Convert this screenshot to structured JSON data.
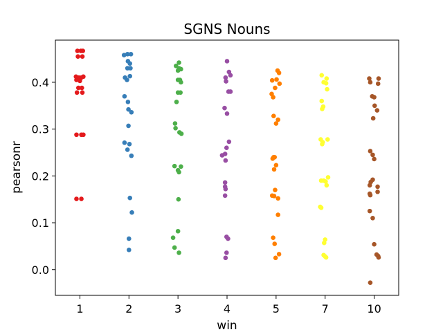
{
  "chart_data": {
    "type": "scatter",
    "title": "SGNS Nouns",
    "xlabel": "win",
    "ylabel": "pearsonr",
    "categories": [
      "1",
      "2",
      "3",
      "4",
      "5",
      "7",
      "10"
    ],
    "ylim": [
      -0.055,
      0.49
    ],
    "yticks": [
      0.0,
      0.1,
      0.2,
      0.3,
      0.4
    ],
    "ytick_labels": [
      "0.0",
      "0.1",
      "0.2",
      "0.3",
      "0.4"
    ],
    "grid": false,
    "legend": "none",
    "colors": [
      "#e41a1c",
      "#377eb8",
      "#4daf4a",
      "#984ea3",
      "#ff7f00",
      "#ffff33",
      "#a65628"
    ],
    "series": [
      {
        "category": "1",
        "color": "#e41a1c",
        "points": [
          {
            "jitter": -0.05,
            "y": 0.467
          },
          {
            "jitter": 0.02,
            "y": 0.467
          },
          {
            "jitter": 0.06,
            "y": 0.467
          },
          {
            "jitter": -0.04,
            "y": 0.455
          },
          {
            "jitter": 0.05,
            "y": 0.455
          },
          {
            "jitter": -0.08,
            "y": 0.412
          },
          {
            "jitter": -0.02,
            "y": 0.41
          },
          {
            "jitter": 0.03,
            "y": 0.41
          },
          {
            "jitter": 0.07,
            "y": 0.412
          },
          {
            "jitter": -0.07,
            "y": 0.405
          },
          {
            "jitter": 0.0,
            "y": 0.403
          },
          {
            "jitter": -0.03,
            "y": 0.388
          },
          {
            "jitter": 0.04,
            "y": 0.388
          },
          {
            "jitter": -0.06,
            "y": 0.378
          },
          {
            "jitter": 0.05,
            "y": 0.378
          },
          {
            "jitter": -0.07,
            "y": 0.288
          },
          {
            "jitter": 0.03,
            "y": 0.288
          },
          {
            "jitter": 0.07,
            "y": 0.288
          },
          {
            "jitter": -0.07,
            "y": 0.151
          },
          {
            "jitter": 0.03,
            "y": 0.151
          }
        ]
      },
      {
        "category": "2",
        "color": "#377eb8",
        "points": [
          {
            "jitter": -0.1,
            "y": 0.458
          },
          {
            "jitter": -0.03,
            "y": 0.46
          },
          {
            "jitter": 0.04,
            "y": 0.46
          },
          {
            "jitter": -0.02,
            "y": 0.445
          },
          {
            "jitter": 0.02,
            "y": 0.44
          },
          {
            "jitter": -0.03,
            "y": 0.43
          },
          {
            "jitter": 0.03,
            "y": 0.43
          },
          {
            "jitter": -0.08,
            "y": 0.41
          },
          {
            "jitter": 0.02,
            "y": 0.413
          },
          {
            "jitter": -0.04,
            "y": 0.405
          },
          {
            "jitter": -0.09,
            "y": 0.37
          },
          {
            "jitter": -0.02,
            "y": 0.358
          },
          {
            "jitter": -0.01,
            "y": 0.342
          },
          {
            "jitter": 0.05,
            "y": 0.336
          },
          {
            "jitter": -0.01,
            "y": 0.307
          },
          {
            "jitter": -0.09,
            "y": 0.271
          },
          {
            "jitter": 0.01,
            "y": 0.268
          },
          {
            "jitter": -0.03,
            "y": 0.256
          },
          {
            "jitter": 0.05,
            "y": 0.243
          },
          {
            "jitter": 0.02,
            "y": 0.153
          },
          {
            "jitter": 0.06,
            "y": 0.122
          },
          {
            "jitter": 0.0,
            "y": 0.066
          },
          {
            "jitter": 0.0,
            "y": 0.042
          }
        ]
      },
      {
        "category": "3",
        "color": "#4daf4a",
        "points": [
          {
            "jitter": 0.02,
            "y": 0.442
          },
          {
            "jitter": -0.04,
            "y": 0.435
          },
          {
            "jitter": 0.02,
            "y": 0.43
          },
          {
            "jitter": 0.06,
            "y": 0.428
          },
          {
            "jitter": 0.0,
            "y": 0.425
          },
          {
            "jitter": 0.0,
            "y": 0.405
          },
          {
            "jitter": 0.04,
            "y": 0.405
          },
          {
            "jitter": 0.06,
            "y": 0.4
          },
          {
            "jitter": 0.0,
            "y": 0.378
          },
          {
            "jitter": 0.05,
            "y": 0.378
          },
          {
            "jitter": -0.03,
            "y": 0.358
          },
          {
            "jitter": -0.06,
            "y": 0.312
          },
          {
            "jitter": -0.05,
            "y": 0.302
          },
          {
            "jitter": 0.03,
            "y": 0.293
          },
          {
            "jitter": 0.07,
            "y": 0.29
          },
          {
            "jitter": -0.07,
            "y": 0.221
          },
          {
            "jitter": 0.06,
            "y": 0.22
          },
          {
            "jitter": 0.0,
            "y": 0.212
          },
          {
            "jitter": 0.02,
            "y": 0.208
          },
          {
            "jitter": 0.01,
            "y": 0.15
          },
          {
            "jitter": 0.0,
            "y": 0.082
          },
          {
            "jitter": -0.1,
            "y": 0.068
          },
          {
            "jitter": -0.07,
            "y": 0.047
          },
          {
            "jitter": 0.02,
            "y": 0.036
          }
        ]
      },
      {
        "category": "4",
        "color": "#984ea3",
        "points": [
          {
            "jitter": 0.0,
            "y": 0.445
          },
          {
            "jitter": 0.04,
            "y": 0.422
          },
          {
            "jitter": 0.07,
            "y": 0.415
          },
          {
            "jitter": -0.03,
            "y": 0.41
          },
          {
            "jitter": -0.02,
            "y": 0.402
          },
          {
            "jitter": 0.03,
            "y": 0.38
          },
          {
            "jitter": 0.07,
            "y": 0.38
          },
          {
            "jitter": -0.05,
            "y": 0.345
          },
          {
            "jitter": 0.0,
            "y": 0.333
          },
          {
            "jitter": 0.04,
            "y": 0.273
          },
          {
            "jitter": -0.01,
            "y": 0.26
          },
          {
            "jitter": -0.1,
            "y": 0.244
          },
          {
            "jitter": -0.04,
            "y": 0.247
          },
          {
            "jitter": -0.03,
            "y": 0.233
          },
          {
            "jitter": -0.04,
            "y": 0.186
          },
          {
            "jitter": -0.04,
            "y": 0.177
          },
          {
            "jitter": -0.03,
            "y": 0.172
          },
          {
            "jitter": -0.04,
            "y": 0.158
          },
          {
            "jitter": -0.01,
            "y": 0.07
          },
          {
            "jitter": 0.02,
            "y": 0.066
          },
          {
            "jitter": -0.01,
            "y": 0.036
          },
          {
            "jitter": -0.03,
            "y": 0.025
          }
        ]
      },
      {
        "category": "5",
        "color": "#ff7f00",
        "points": [
          {
            "jitter": 0.03,
            "y": 0.425
          },
          {
            "jitter": 0.06,
            "y": 0.42
          },
          {
            "jitter": -0.08,
            "y": 0.404
          },
          {
            "jitter": 0.01,
            "y": 0.406
          },
          {
            "jitter": 0.07,
            "y": 0.397
          },
          {
            "jitter": -0.02,
            "y": 0.388
          },
          {
            "jitter": -0.09,
            "y": 0.375
          },
          {
            "jitter": -0.06,
            "y": 0.368
          },
          {
            "jitter": -0.05,
            "y": 0.328
          },
          {
            "jitter": 0.04,
            "y": 0.32
          },
          {
            "jitter": 0.0,
            "y": 0.312
          },
          {
            "jitter": -0.05,
            "y": 0.24
          },
          {
            "jitter": -0.03,
            "y": 0.24
          },
          {
            "jitter": -0.07,
            "y": 0.237
          },
          {
            "jitter": 0.0,
            "y": 0.223
          },
          {
            "jitter": -0.04,
            "y": 0.214
          },
          {
            "jitter": -0.02,
            "y": 0.17
          },
          {
            "jitter": -0.08,
            "y": 0.158
          },
          {
            "jitter": -0.04,
            "y": 0.157
          },
          {
            "jitter": 0.04,
            "y": 0.152
          },
          {
            "jitter": 0.04,
            "y": 0.117
          },
          {
            "jitter": -0.06,
            "y": 0.068
          },
          {
            "jitter": -0.03,
            "y": 0.055
          },
          {
            "jitter": 0.06,
            "y": 0.033
          },
          {
            "jitter": -0.01,
            "y": 0.025
          }
        ]
      },
      {
        "category": "7",
        "color": "#ffff33",
        "points": [
          {
            "jitter": -0.07,
            "y": 0.415
          },
          {
            "jitter": 0.03,
            "y": 0.408
          },
          {
            "jitter": -0.03,
            "y": 0.4
          },
          {
            "jitter": 0.02,
            "y": 0.398
          },
          {
            "jitter": 0.04,
            "y": 0.385
          },
          {
            "jitter": -0.07,
            "y": 0.36
          },
          {
            "jitter": -0.04,
            "y": 0.348
          },
          {
            "jitter": -0.06,
            "y": 0.343
          },
          {
            "jitter": -0.09,
            "y": 0.278
          },
          {
            "jitter": 0.05,
            "y": 0.278
          },
          {
            "jitter": -0.05,
            "y": 0.272
          },
          {
            "jitter": -0.06,
            "y": 0.268
          },
          {
            "jitter": 0.06,
            "y": 0.197
          },
          {
            "jitter": -0.08,
            "y": 0.19
          },
          {
            "jitter": -0.03,
            "y": 0.19
          },
          {
            "jitter": 0.01,
            "y": 0.188
          },
          {
            "jitter": 0.03,
            "y": 0.18
          },
          {
            "jitter": -0.1,
            "y": 0.134
          },
          {
            "jitter": -0.08,
            "y": 0.132
          },
          {
            "jitter": 0.0,
            "y": 0.064
          },
          {
            "jitter": -0.02,
            "y": 0.057
          },
          {
            "jitter": -0.03,
            "y": 0.031
          },
          {
            "jitter": 0.0,
            "y": 0.028
          },
          {
            "jitter": 0.02,
            "y": 0.026
          }
        ]
      },
      {
        "category": "10",
        "color": "#a65628",
        "points": [
          {
            "jitter": -0.1,
            "y": 0.408
          },
          {
            "jitter": 0.09,
            "y": 0.408
          },
          {
            "jitter": -0.08,
            "y": 0.4
          },
          {
            "jitter": 0.08,
            "y": 0.397
          },
          {
            "jitter": -0.04,
            "y": 0.37
          },
          {
            "jitter": 0.0,
            "y": 0.368
          },
          {
            "jitter": 0.01,
            "y": 0.35
          },
          {
            "jitter": 0.06,
            "y": 0.34
          },
          {
            "jitter": -0.02,
            "y": 0.323
          },
          {
            "jitter": -0.08,
            "y": 0.253
          },
          {
            "jitter": -0.03,
            "y": 0.245
          },
          {
            "jitter": 0.0,
            "y": 0.236
          },
          {
            "jitter": -0.03,
            "y": 0.192
          },
          {
            "jitter": -0.07,
            "y": 0.187
          },
          {
            "jitter": -0.09,
            "y": 0.18
          },
          {
            "jitter": 0.07,
            "y": 0.177
          },
          {
            "jitter": 0.07,
            "y": 0.166
          },
          {
            "jitter": -0.09,
            "y": 0.162
          },
          {
            "jitter": -0.08,
            "y": 0.159
          },
          {
            "jitter": -0.09,
            "y": 0.125
          },
          {
            "jitter": -0.03,
            "y": 0.11
          },
          {
            "jitter": 0.0,
            "y": 0.054
          },
          {
            "jitter": 0.05,
            "y": 0.032
          },
          {
            "jitter": 0.08,
            "y": 0.029
          },
          {
            "jitter": 0.09,
            "y": 0.026
          },
          {
            "jitter": -0.08,
            "y": -0.028
          }
        ]
      }
    ]
  }
}
